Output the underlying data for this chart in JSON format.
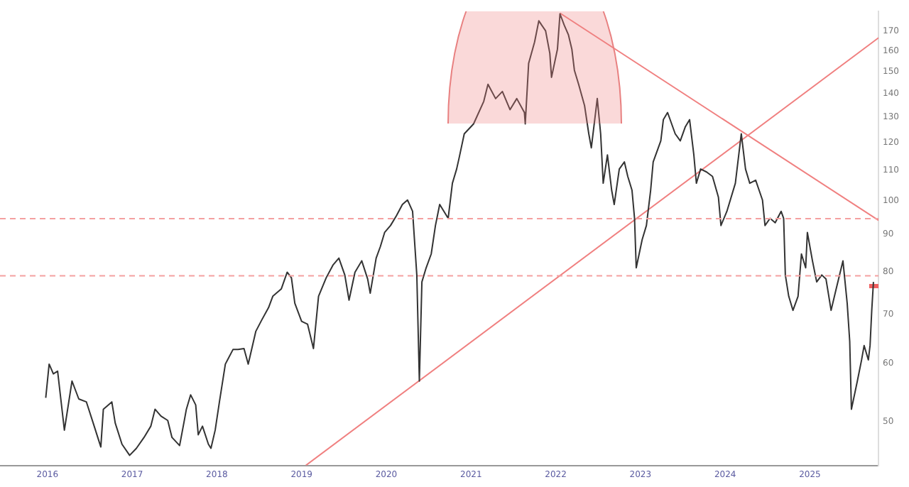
{
  "chart_data": {
    "type": "line",
    "log": "y",
    "marker": "none",
    "xlim": [
      2015.44,
      2025.81
    ],
    "xticks": [
      {
        "value": 2016,
        "label": "2016"
      },
      {
        "value": 2017,
        "label": "2017"
      },
      {
        "value": 2018,
        "label": "2018"
      },
      {
        "value": 2019,
        "label": "2019"
      },
      {
        "value": 2020,
        "label": "2020"
      },
      {
        "value": 2021,
        "label": "2021"
      },
      {
        "value": 2022,
        "label": "2022"
      },
      {
        "value": 2023,
        "label": "2023"
      },
      {
        "value": 2024,
        "label": "2024"
      },
      {
        "value": 2025,
        "label": "2025"
      }
    ],
    "ylim": [
      43.6,
      181
    ],
    "yticks": [
      50,
      60,
      70,
      80,
      90,
      100,
      110,
      120,
      130,
      140,
      150,
      160,
      170
    ],
    "series": [
      {
        "color": "#333333",
        "x": [
          2015.98,
          2016.02,
          2016.07,
          2016.12,
          2016.2,
          2016.29,
          2016.37,
          2016.46,
          2016.54,
          2016.63,
          2016.66,
          2016.76,
          2016.8,
          2016.88,
          2016.97,
          2017.05,
          2017.14,
          2017.22,
          2017.27,
          2017.34,
          2017.42,
          2017.47,
          2017.56,
          2017.61,
          2017.64,
          2017.69,
          2017.75,
          2017.78,
          2017.83,
          2017.9,
          2017.93,
          2017.98,
          2018.03,
          2018.1,
          2018.19,
          2018.25,
          2018.32,
          2018.37,
          2018.46,
          2018.53,
          2018.61,
          2018.66,
          2018.76,
          2018.83,
          2018.88,
          2018.92,
          2019.0,
          2019.07,
          2019.14,
          2019.2,
          2019.29,
          2019.37,
          2019.44,
          2019.51,
          2019.56,
          2019.63,
          2019.71,
          2019.78,
          2019.81,
          2019.88,
          2019.93,
          2019.98,
          2020.05,
          2020.12,
          2020.19,
          2020.25,
          2020.31,
          2020.36,
          2020.39,
          2020.42,
          2020.47,
          2020.53,
          2020.58,
          2020.63,
          2020.68,
          2020.73,
          2020.78,
          2020.83,
          2020.86,
          2020.92,
          2021.03,
          2021.15,
          2021.2,
          2021.29,
          2021.37,
          2021.46,
          2021.54,
          2021.63,
          2021.64,
          2021.68,
          2021.75,
          2021.8,
          2021.88,
          2021.93,
          2021.95,
          2022.02,
          2022.05,
          2022.1,
          2022.15,
          2022.19,
          2022.22,
          2022.27,
          2022.34,
          2022.39,
          2022.42,
          2022.46,
          2022.49,
          2022.53,
          2022.56,
          2022.61,
          2022.66,
          2022.69,
          2022.75,
          2022.81,
          2022.85,
          2022.9,
          2022.93,
          2022.95,
          2023.02,
          2023.07,
          2023.12,
          2023.15,
          2023.24,
          2023.27,
          2023.32,
          2023.41,
          2023.47,
          2023.53,
          2023.58,
          2023.63,
          2023.66,
          2023.71,
          2023.78,
          2023.85,
          2023.92,
          2023.95,
          2024.02,
          2024.12,
          2024.19,
          2024.24,
          2024.29,
          2024.36,
          2024.44,
          2024.47,
          2024.53,
          2024.59,
          2024.66,
          2024.69,
          2024.71,
          2024.75,
          2024.8,
          2024.86,
          2024.9,
          2024.95,
          2024.97,
          2025.03,
          2025.08,
          2025.14,
          2025.19,
          2025.25,
          2025.31,
          2025.39,
          2025.44,
          2025.47,
          2025.49,
          2025.56,
          2025.61,
          2025.64,
          2025.69,
          2025.71,
          2025.73,
          2025.75
        ],
        "values": [
          53.9,
          59.9,
          58.1,
          58.6,
          48.7,
          56.8,
          53.7,
          53.2,
          49.8,
          46.2,
          52.0,
          53.2,
          49.8,
          46.6,
          45.0,
          46.0,
          47.6,
          49.3,
          52.0,
          50.9,
          50.2,
          47.6,
          46.4,
          49.8,
          52.0,
          54.4,
          52.7,
          48.0,
          49.3,
          46.6,
          46.0,
          48.7,
          53.2,
          59.9,
          62.7,
          62.7,
          62.9,
          59.9,
          66.4,
          68.8,
          71.5,
          74.1,
          75.8,
          79.9,
          78.5,
          72.5,
          68.5,
          67.9,
          62.9,
          74.1,
          78.5,
          81.7,
          83.5,
          79.2,
          73.2,
          79.9,
          82.8,
          78.2,
          74.8,
          83.5,
          86.6,
          90.5,
          92.5,
          95.4,
          98.8,
          100.2,
          96.7,
          79.2,
          56.8,
          77.5,
          81.0,
          84.6,
          92.5,
          98.8,
          96.7,
          94.6,
          105.6,
          110.4,
          114.4,
          123.3,
          127.2,
          136.5,
          144.0,
          137.7,
          140.8,
          133.0,
          137.7,
          131.8,
          127.2,
          153.8,
          164.4,
          175.7,
          170.3,
          158.7,
          147.2,
          160.8,
          179.6,
          173.4,
          168.1,
          160.8,
          150.5,
          144.0,
          134.7,
          123.3,
          118.0,
          128.9,
          137.7,
          123.3,
          105.6,
          115.4,
          103.3,
          98.8,
          110.4,
          112.9,
          107.9,
          103.3,
          94.6,
          81.0,
          88.5,
          92.5,
          103.3,
          112.9,
          120.6,
          128.9,
          131.8,
          123.3,
          120.6,
          126.1,
          128.9,
          115.4,
          105.6,
          110.4,
          109.4,
          107.9,
          101.1,
          92.5,
          96.7,
          105.6,
          123.3,
          110.4,
          105.6,
          106.6,
          100.2,
          92.5,
          94.6,
          93.3,
          96.7,
          94.6,
          79.2,
          74.1,
          70.9,
          74.1,
          84.6,
          81.0,
          90.5,
          82.8,
          77.5,
          79.2,
          78.2,
          70.9,
          75.8,
          82.8,
          72.5,
          64.3,
          52.0,
          56.8,
          60.7,
          63.5,
          60.7,
          63.5,
          70.9,
          77.5
        ]
      },
      {
        "color": "#f08080",
        "x": [
          2019.05,
          2025.81
        ],
        "values": [
          43.6,
          166.6
        ]
      },
      {
        "color": "#f08080",
        "x": [
          2022.05,
          2025.81
        ],
        "values": [
          180,
          94
        ]
      },
      {
        "color": "#f06060",
        "x": [
          2025.7,
          2025.81
        ],
        "values": [
          76.5,
          76.5
        ]
      }
    ],
    "ref_lines": [
      {
        "axis": "y",
        "value": 79,
        "color": "#f4a0a0",
        "line_style": "dashed"
      },
      {
        "axis": "y",
        "value": 94.5,
        "color": "#f4a0a0",
        "line_style": "dashed"
      }
    ]
  }
}
